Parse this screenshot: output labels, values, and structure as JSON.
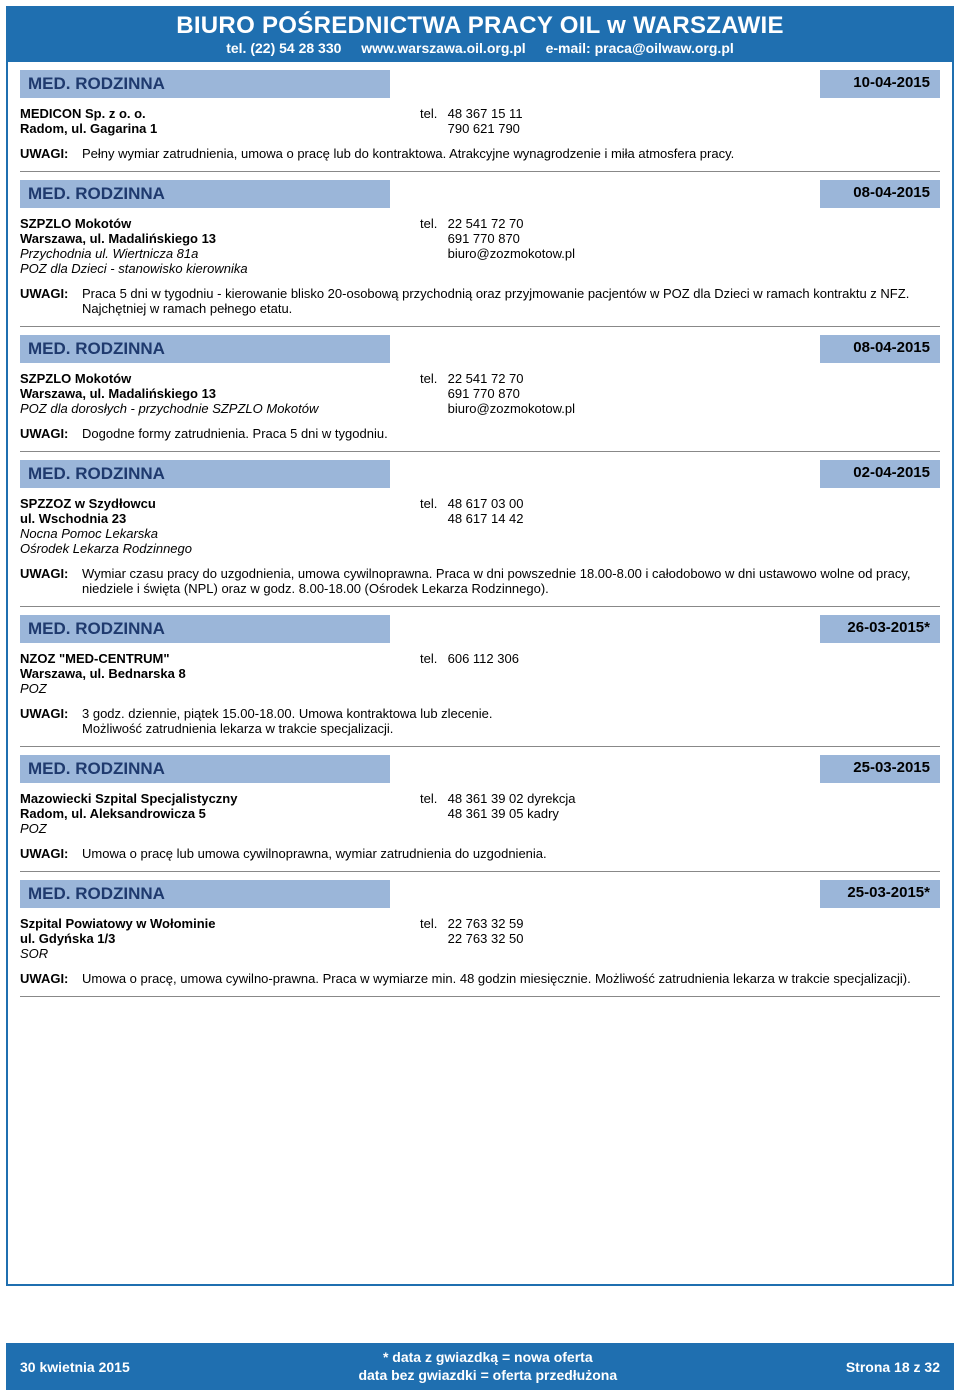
{
  "header": {
    "title": "BIURO POŚREDNICTWA PRACY OIL w WARSZAWIE",
    "tel": "tel. (22) 54 28 330",
    "www": "www.warszawa.oil.org.pl",
    "email": "e-mail: praca@oilwaw.org.pl"
  },
  "uwagi_label": "UWAGI:",
  "tel_label": "tel.",
  "listings": [
    {
      "category": "MED. RODZINNA",
      "date": "10-04-2015",
      "org": "MEDICON Sp. z o. o.",
      "addr": "Radom, ul. Gagarina 1",
      "extra1": "",
      "extra2": "",
      "phone1": "48 367 15 11",
      "phone2": "790 621 790",
      "email": "",
      "uwagi": "Pełny wymiar zatrudnienia, umowa o pracę lub do kontraktowa. Atrakcyjne wynagrodzenie i miła atmosfera pracy."
    },
    {
      "category": "MED. RODZINNA",
      "date": "08-04-2015",
      "org": "SZPZLO Mokotów",
      "addr": "Warszawa, ul. Madalińskiego 13",
      "extra1": "Przychodnia ul. Wiertnicza 81a",
      "extra2": "POZ dla Dzieci - stanowisko kierownika",
      "phone1": "22 541 72 70",
      "phone2": "691 770 870",
      "email": "biuro@zozmokotow.pl",
      "uwagi": "Praca 5 dni w tygodniu - kierowanie blisko 20-osobową przychodnią oraz przyjmowanie pacjentów w POZ dla Dzieci w ramach kontraktu z NFZ. Najchętniej w ramach pełnego etatu."
    },
    {
      "category": "MED. RODZINNA",
      "date": "08-04-2015",
      "org": "SZPZLO Mokotów",
      "addr": "Warszawa, ul. Madalińskiego 13",
      "extra1": "POZ dla dorosłych - przychodnie SZPZLO Mokotów",
      "extra2": "",
      "phone1": "22 541 72 70",
      "phone2": "691 770 870",
      "email": "biuro@zozmokotow.pl",
      "uwagi": "Dogodne formy zatrudnienia. Praca 5 dni w tygodniu."
    },
    {
      "category": "MED. RODZINNA",
      "date": "02-04-2015",
      "org": "SPZZOZ w Szydłowcu",
      "addr": "ul. Wschodnia 23",
      "extra1": "Nocna Pomoc Lekarska",
      "extra2": "Ośrodek Lekarza Rodzinnego",
      "phone1": "48 617 03 00",
      "phone2": "48 617 14 42",
      "email": "",
      "uwagi": "Wymiar czasu pracy do uzgodnienia, umowa cywilnoprawna. Praca w dni powszednie 18.00-8.00 i całodobowo w dni ustawowo wolne od pracy, niedziele i święta (NPL) oraz w godz. 8.00-18.00 (Ośrodek Lekarza Rodzinnego)."
    },
    {
      "category": "MED. RODZINNA",
      "date": "26-03-2015*",
      "org": "NZOZ \"MED-CENTRUM\"",
      "addr": "Warszawa, ul. Bednarska 8",
      "extra1": "POZ",
      "extra2": "",
      "phone1": "606 112 306",
      "phone2": "",
      "email": "",
      "uwagi": "3 godz. dziennie, piątek 15.00-18.00. Umowa kontraktowa lub zlecenie.\nMożliwość zatrudnienia lekarza w trakcie specjalizacji."
    },
    {
      "category": "MED. RODZINNA",
      "date": "25-03-2015",
      "org": "Mazowiecki Szpital Specjalistyczny",
      "addr": "Radom, ul. Aleksandrowicza 5",
      "extra1": "POZ",
      "extra2": "",
      "phone1": "48 361 39 02 dyrekcja",
      "phone2": "48 361 39 05 kadry",
      "email": "",
      "uwagi": "Umowa o pracę lub umowa cywilnoprawna, wymiar zatrudnienia do uzgodnienia."
    },
    {
      "category": "MED. RODZINNA",
      "date": "25-03-2015*",
      "org": "Szpital Powiatowy w Wołominie",
      "addr": "ul. Gdyńska 1/3",
      "extra1": "SOR",
      "extra2": "",
      "phone1": "22 763 32 59",
      "phone2": "22 763 32 50",
      "email": "",
      "uwagi": "Umowa o pracę, umowa cywilno-prawna. Praca w wymiarze min. 48 godzin miesięcznie. Możliwość zatrudnienia lekarza w trakcie specjalizacji)."
    }
  ],
  "footer": {
    "left": "30 kwietnia 2015",
    "center1": "* data z gwiazdką = nowa oferta",
    "center2": "data bez gwiazdki = oferta przedłużona",
    "right": "Strona 18 z 32"
  },
  "colors": {
    "brand": "#1f6fb0",
    "bar": "#9bb6d9",
    "bar_text": "#1f3a6e",
    "rule": "#888888"
  }
}
